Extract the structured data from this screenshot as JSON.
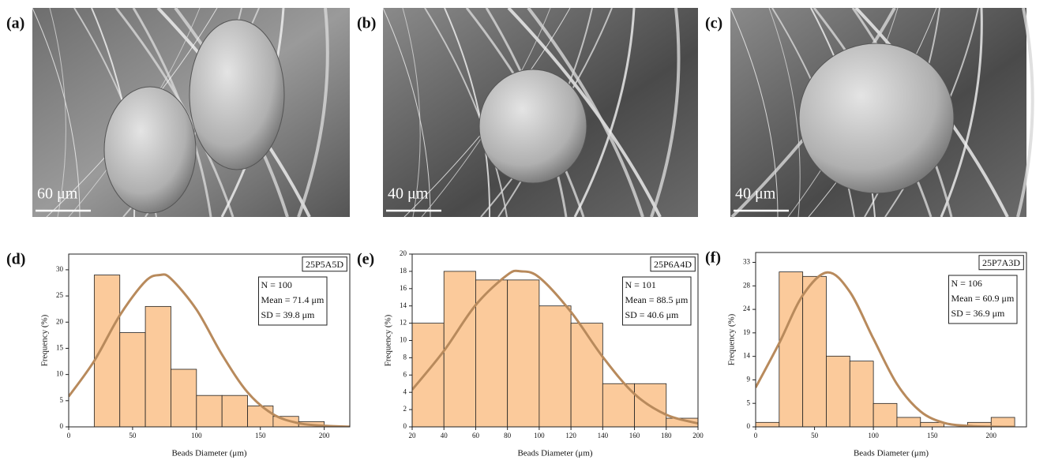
{
  "images": [
    {
      "label": "(a)",
      "scale_bar": "60 μm"
    },
    {
      "label": "(b)",
      "scale_bar": "40 μm"
    },
    {
      "label": "(c)",
      "scale_bar": "40 μm"
    }
  ],
  "chart_data": [
    {
      "type": "histogram",
      "panel_label": "(d)",
      "sample": "25P5A5D",
      "stats": [
        "N = 100",
        "Mean = 71.4 μm",
        "SD = 39.8 μm"
      ],
      "x_label": "Beads Diameter (μm)",
      "y_label": "Frequency (%)",
      "color": "#fbca9b",
      "bins": [
        20,
        40,
        60,
        80,
        100,
        120,
        140,
        160,
        180,
        200
      ],
      "values": [
        29,
        18,
        23,
        11,
        6,
        6,
        4,
        2,
        1
      ],
      "fit": {
        "color": "#b88a5c",
        "x": [
          0,
          20,
          40,
          60,
          71.4,
          80,
          100,
          120,
          140,
          160,
          180,
          200,
          220
        ],
        "values": [
          5.8,
          12.6,
          21.3,
          27.8,
          29,
          28.3,
          22.4,
          13.8,
          6.6,
          2.4,
          0.7,
          0.2,
          0.03
        ]
      },
      "xlim": [
        0,
        220
      ],
      "xticks": [
        0,
        50,
        100,
        150,
        200
      ],
      "ylim": [
        0,
        33
      ],
      "yticks": [
        0,
        5,
        10,
        15,
        20,
        25,
        30
      ]
    },
    {
      "type": "histogram",
      "panel_label": "(e)",
      "sample": "25P6A4D",
      "stats": [
        "N = 101",
        "Mean = 88.5 μm",
        "SD = 40.6 μm"
      ],
      "x_label": "Beads Diameter (μm)",
      "y_label": "Frequency (%)",
      "color": "#fbca9b",
      "bins": [
        20,
        40,
        60,
        80,
        100,
        120,
        140,
        160,
        180,
        200
      ],
      "values": [
        12,
        18,
        17,
        17,
        14,
        12,
        5,
        5,
        1
      ],
      "fit": {
        "color": "#b88a5c",
        "x": [
          20,
          40,
          60,
          80,
          88.5,
          100,
          120,
          140,
          160,
          180,
          200
        ],
        "values": [
          4.3,
          8.8,
          14.1,
          17.6,
          18,
          17.3,
          13.3,
          8.1,
          3.8,
          1.4,
          0.4
        ]
      },
      "xlim": [
        20,
        200
      ],
      "xticks": [
        20,
        40,
        60,
        80,
        100,
        120,
        140,
        160,
        180,
        200
      ],
      "ylim": [
        0,
        20
      ],
      "yticks": [
        0,
        2,
        4,
        6,
        8,
        10,
        12,
        14,
        16,
        18,
        20
      ]
    },
    {
      "type": "histogram",
      "panel_label": "(f)",
      "sample": "25P7A3D",
      "stats": [
        "N = 106",
        "Mean = 60.9 μm",
        "SD = 36.9 μm"
      ],
      "x_label": "Beads Diameter (μm)",
      "y_label": "Frequency (%)",
      "color": "#fbca9b",
      "bins": [
        0,
        20,
        40,
        60,
        80,
        100,
        120,
        140,
        160,
        180,
        200,
        220
      ],
      "values": [
        0.9,
        31.1,
        30.2,
        14.2,
        13.2,
        4.7,
        1.9,
        0.9,
        0,
        0.9,
        1.9
      ],
      "fit": {
        "color": "#b88a5c",
        "x": [
          0,
          20,
          40,
          60.9,
          80,
          100,
          120,
          140,
          160,
          180,
          200,
          220
        ],
        "values": [
          7.9,
          16.8,
          26.4,
          31,
          27.1,
          17.7,
          8.6,
          3.1,
          0.8,
          0.2,
          0.03,
          0
        ]
      },
      "xlim": [
        0,
        230
      ],
      "xticks": [
        0,
        50,
        100,
        150,
        200
      ],
      "ylim": [
        0,
        35
      ],
      "yticks": [
        0,
        {
          "value": 4.72,
          "label": "5"
        },
        {
          "value": 9.43,
          "label": "9"
        },
        {
          "value": 14.15,
          "label": "14"
        },
        {
          "value": 18.87,
          "label": "19"
        },
        {
          "value": 23.58,
          "label": "24"
        },
        {
          "value": 28.3,
          "label": "28"
        },
        {
          "value": 33.02,
          "label": "33"
        }
      ]
    }
  ]
}
